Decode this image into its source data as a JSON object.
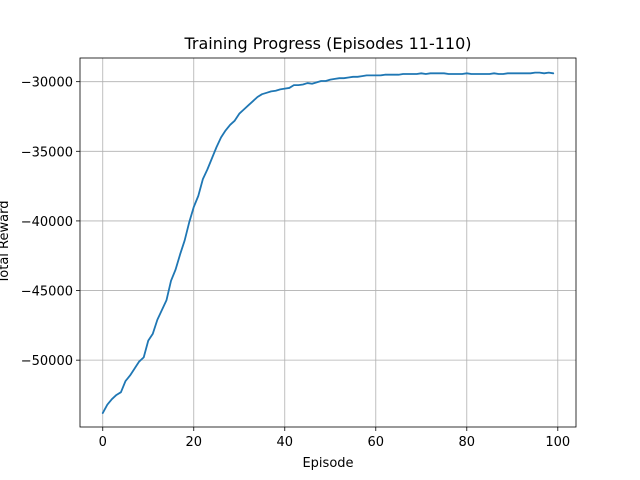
{
  "chart_data": {
    "type": "line",
    "title": "Training Progress (Episodes 11-110)",
    "xlabel": "Episode",
    "ylabel": "Total Reward",
    "xlim": [
      -5,
      104
    ],
    "ylim": [
      -54800,
      -28300
    ],
    "xticks": [
      0,
      20,
      40,
      60,
      80,
      100
    ],
    "yticks": [
      -50000,
      -45000,
      -40000,
      -35000,
      -30000
    ],
    "xtick_labels": [
      "0",
      "20",
      "40",
      "60",
      "80",
      "100"
    ],
    "ytick_labels": [
      "−50000",
      "−45000",
      "−40000",
      "−35000",
      "−30000"
    ],
    "grid": true,
    "legend": "none",
    "color": "#1f77b4",
    "series": [
      {
        "x": [
          0,
          1,
          2,
          3,
          4,
          5,
          6,
          7,
          8,
          9,
          10,
          11,
          12,
          13,
          14,
          15,
          16,
          17,
          18,
          19,
          20,
          21,
          22,
          23,
          24,
          25,
          26,
          27,
          28,
          29,
          30,
          31,
          32,
          33,
          34,
          35,
          36,
          37,
          38,
          39,
          40,
          41,
          42,
          43,
          44,
          45,
          46,
          47,
          48,
          49,
          50,
          51,
          52,
          53,
          54,
          55,
          56,
          57,
          58,
          59,
          60,
          61,
          62,
          63,
          64,
          65,
          66,
          67,
          68,
          69,
          70,
          71,
          72,
          73,
          74,
          75,
          76,
          77,
          78,
          79,
          80,
          81,
          82,
          83,
          84,
          85,
          86,
          87,
          88,
          89,
          90,
          91,
          92,
          93,
          94,
          95,
          96,
          97,
          98,
          99
        ],
        "y": [
          -53800,
          -53200,
          -52800,
          -52500,
          -52300,
          -51500,
          -51100,
          -50600,
          -50100,
          -49800,
          -48600,
          -48100,
          -47100,
          -46400,
          -45700,
          -44300,
          -43500,
          -42400,
          -41400,
          -40100,
          -39000,
          -38200,
          -37000,
          -36300,
          -35500,
          -34700,
          -34000,
          -33500,
          -33100,
          -32800,
          -32300,
          -32000,
          -31700,
          -31400,
          -31100,
          -30900,
          -30800,
          -30700,
          -30650,
          -30550,
          -30500,
          -30450,
          -30250,
          -30250,
          -30200,
          -30100,
          -30150,
          -30050,
          -29950,
          -29950,
          -29850,
          -29800,
          -29750,
          -29750,
          -29700,
          -29650,
          -29650,
          -29600,
          -29550,
          -29550,
          -29550,
          -29550,
          -29500,
          -29500,
          -29500,
          -29500,
          -29450,
          -29450,
          -29450,
          -29450,
          -29400,
          -29450,
          -29400,
          -29400,
          -29400,
          -29400,
          -29450,
          -29450,
          -29450,
          -29450,
          -29400,
          -29450,
          -29450,
          -29450,
          -29450,
          -29450,
          -29400,
          -29450,
          -29450,
          -29400,
          -29400,
          -29400,
          -29400,
          -29400,
          -29400,
          -29350,
          -29350,
          -29400,
          -29350,
          -29400
        ]
      }
    ]
  }
}
